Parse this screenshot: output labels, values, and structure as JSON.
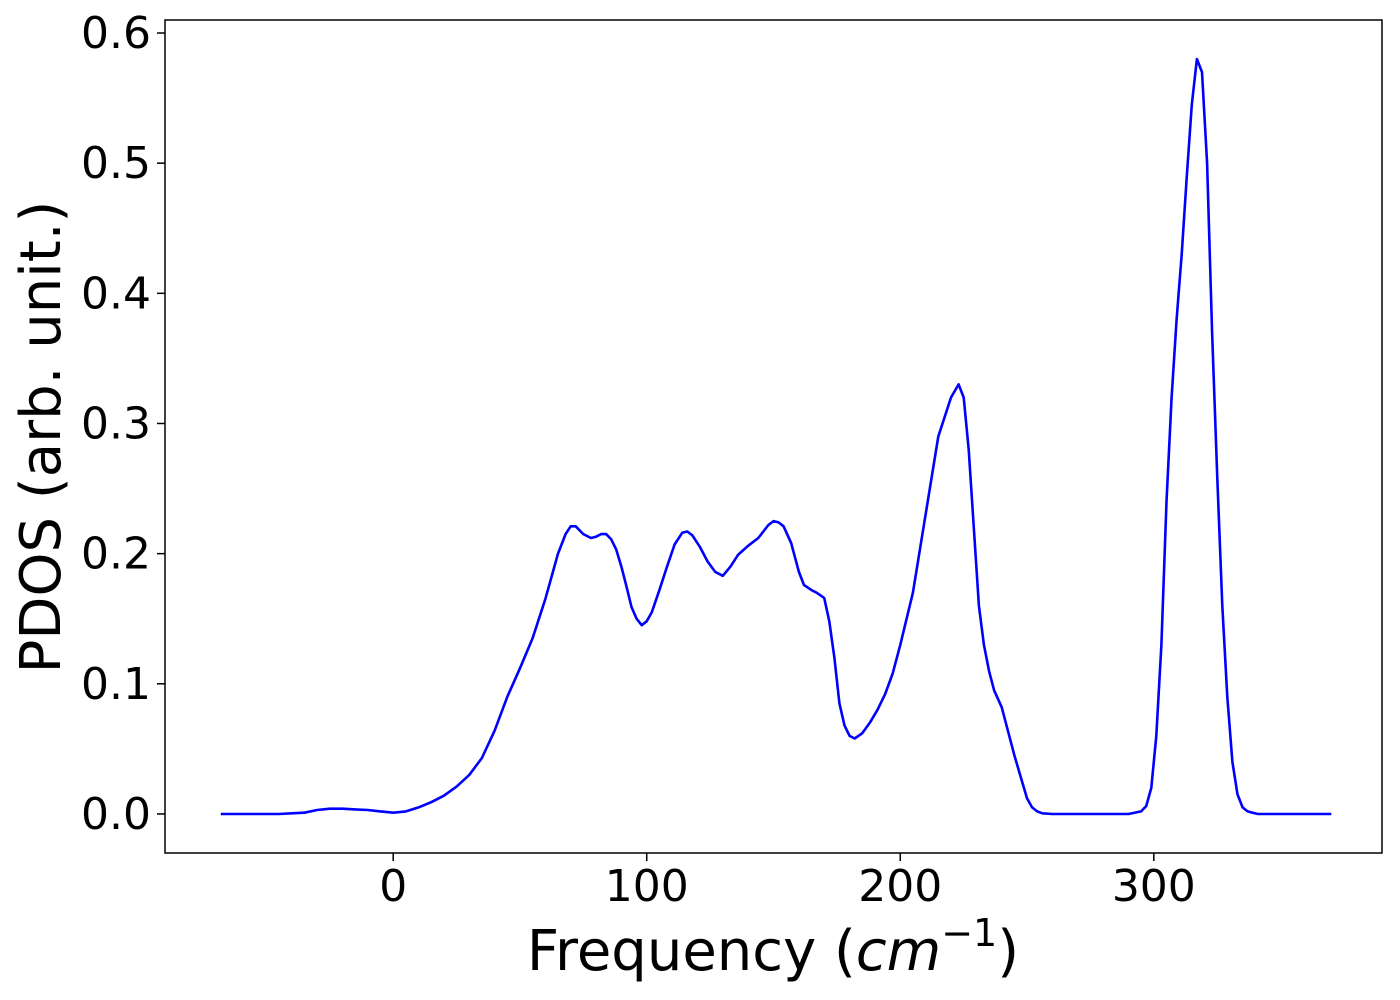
{
  "chart_data": {
    "type": "line",
    "title": "",
    "xlabel_prefix": "Frequency (",
    "xlabel_math": "cm",
    "xlabel_sup": "−1",
    "xlabel_suffix": ")",
    "ylabel": "PDOS (arb. unit.)",
    "xlim": [
      -90,
      390
    ],
    "ylim": [
      -0.03,
      0.61
    ],
    "xticks": [
      0,
      100,
      200,
      300
    ],
    "xtick_labels": [
      "0",
      "100",
      "200",
      "300"
    ],
    "yticks": [
      0.0,
      0.1,
      0.2,
      0.3,
      0.4,
      0.5,
      0.6
    ],
    "ytick_labels": [
      "0.0",
      "0.1",
      "0.2",
      "0.3",
      "0.4",
      "0.5",
      "0.6"
    ],
    "grid": false,
    "legend": "none",
    "line_color": "#0000ff",
    "series": [
      {
        "x": [
          -68,
          -45,
          -40,
          -35,
          -30,
          -25,
          -20,
          -15,
          -10,
          -5,
          0,
          5,
          10,
          15,
          20,
          25,
          30,
          35,
          40,
          45,
          50,
          55,
          60,
          65,
          68,
          70,
          72,
          75,
          78,
          80,
          82,
          84,
          86,
          88,
          90,
          92,
          94,
          96,
          98,
          100,
          102,
          105,
          108,
          111,
          114,
          116,
          118,
          121,
          124,
          127,
          130,
          133,
          136,
          140,
          144,
          148,
          150,
          152,
          154,
          157,
          160,
          162,
          165,
          167,
          170,
          172,
          174,
          176,
          178,
          180,
          182,
          185,
          188,
          191,
          194,
          197,
          200,
          205,
          210,
          215,
          220,
          223,
          225,
          227,
          229,
          231,
          233,
          235,
          237,
          240,
          245,
          248,
          250,
          252,
          254,
          256,
          260,
          270,
          280,
          290,
          295,
          297,
          299,
          301,
          303,
          305,
          307,
          309,
          311,
          313,
          315,
          317,
          319,
          321,
          323,
          325,
          327,
          329,
          331,
          333,
          335,
          337,
          339,
          341,
          343,
          345,
          350,
          360,
          370
        ],
        "y": [
          0.0,
          0.0,
          0.0005,
          0.001,
          0.003,
          0.004,
          0.004,
          0.0035,
          0.003,
          0.002,
          0.001,
          0.002,
          0.005,
          0.009,
          0.014,
          0.021,
          0.03,
          0.043,
          0.064,
          0.09,
          0.112,
          0.135,
          0.165,
          0.2,
          0.215,
          0.221,
          0.221,
          0.215,
          0.212,
          0.213,
          0.215,
          0.215,
          0.211,
          0.203,
          0.19,
          0.175,
          0.159,
          0.15,
          0.145,
          0.148,
          0.155,
          0.172,
          0.19,
          0.207,
          0.216,
          0.217,
          0.214,
          0.205,
          0.194,
          0.186,
          0.183,
          0.19,
          0.199,
          0.206,
          0.212,
          0.222,
          0.225,
          0.224,
          0.221,
          0.208,
          0.186,
          0.176,
          0.172,
          0.17,
          0.166,
          0.148,
          0.12,
          0.085,
          0.068,
          0.06,
          0.058,
          0.062,
          0.07,
          0.08,
          0.092,
          0.108,
          0.13,
          0.17,
          0.23,
          0.29,
          0.32,
          0.33,
          0.32,
          0.28,
          0.22,
          0.16,
          0.13,
          0.11,
          0.095,
          0.082,
          0.045,
          0.025,
          0.012,
          0.005,
          0.002,
          0.0005,
          0.0,
          0.0,
          0.0,
          0.0,
          0.002,
          0.006,
          0.02,
          0.06,
          0.13,
          0.24,
          0.32,
          0.38,
          0.43,
          0.49,
          0.545,
          0.58,
          0.57,
          0.5,
          0.37,
          0.26,
          0.16,
          0.09,
          0.04,
          0.015,
          0.005,
          0.002,
          0.001,
          0.0,
          0.0,
          0.0,
          0.0,
          0.0,
          0.0
        ]
      }
    ]
  }
}
